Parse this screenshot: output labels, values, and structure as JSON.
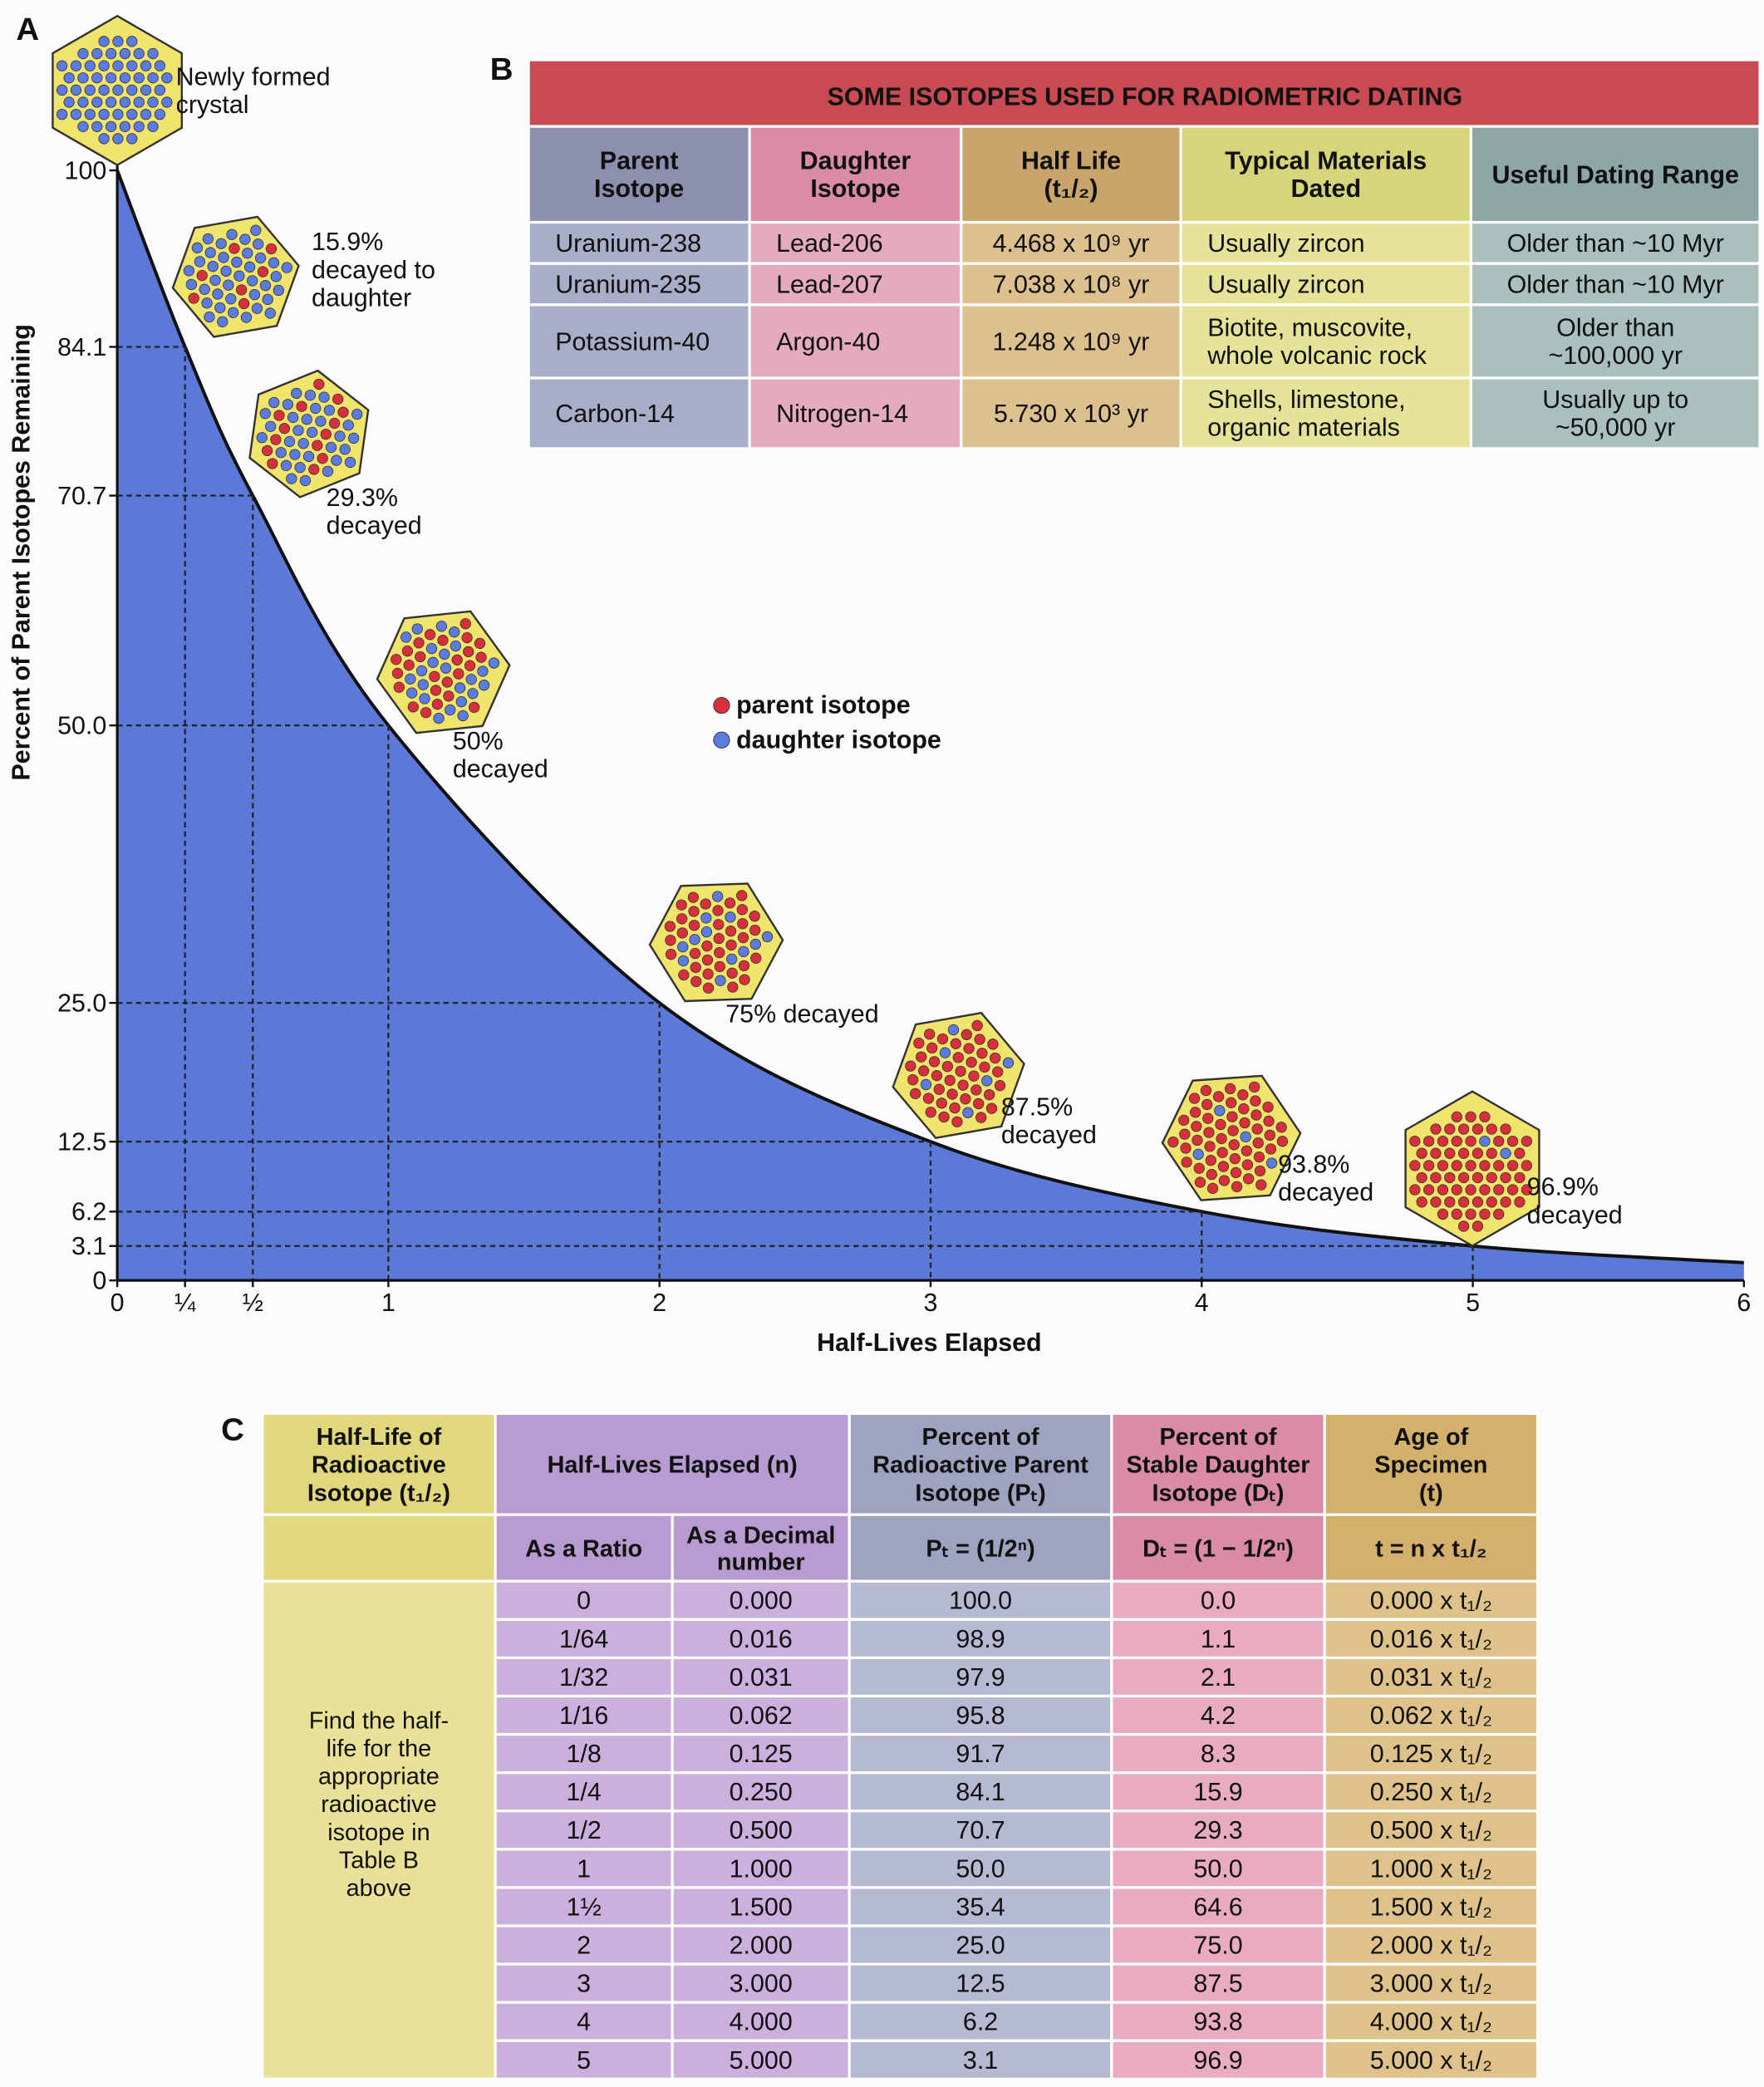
{
  "chart_data": {
    "type": "line",
    "panel": "A",
    "xlabel": "Half-Lives Elapsed",
    "ylabel": "Percent of Parent Isotopes Remaining",
    "x": [
      0,
      0.25,
      0.5,
      1,
      2,
      3,
      4,
      5,
      6
    ],
    "values": [
      100,
      84.1,
      70.7,
      50,
      25,
      12.5,
      6.2,
      3.1,
      1.6
    ],
    "color": "#111111",
    "fill": "#5d79d8",
    "xlim": [
      0,
      6
    ],
    "xticks": [
      0,
      {
        "value": 0.25,
        "label": "¼"
      },
      {
        "value": 0.5,
        "label": "½"
      },
      1,
      2,
      3,
      4,
      5,
      6
    ],
    "ylim": [
      0,
      100
    ],
    "yticks": [
      0,
      3.1,
      6.2,
      12.5,
      {
        "value": 25,
        "label": "25.0"
      },
      {
        "value": 50,
        "label": "50.0"
      },
      70.7,
      84.1,
      100
    ],
    "annotations": [
      {
        "lines": [
          "Newly formed",
          "crystal"
        ]
      },
      {
        "lines": [
          "15.9%",
          "decayed to",
          "daughter"
        ]
      },
      {
        "lines": [
          "29.3%",
          "decayed"
        ]
      },
      {
        "lines": [
          "50%",
          "decayed"
        ]
      },
      {
        "lines": [
          "75% decayed"
        ]
      },
      {
        "lines": [
          "87.5%",
          "decayed"
        ]
      },
      {
        "lines": [
          "93.8%",
          "decayed"
        ]
      },
      {
        "lines": [
          "96.9%",
          "decayed"
        ]
      }
    ],
    "legend": [
      {
        "name": "parent isotope",
        "color": "#d7303c"
      },
      {
        "name": "daughter isotope",
        "color": "#5b7be0"
      }
    ]
  },
  "table_b": {
    "panel": "B",
    "title": "SOME ISOTOPES USED FOR RADIOMETRIC DATING",
    "columns": [
      [
        "Parent",
        "Isotope"
      ],
      [
        "Daughter",
        "Isotope"
      ],
      [
        "Half Life",
        "(t₁/₂)"
      ],
      [
        "Typical Materials",
        "Dated"
      ],
      [
        "Useful Dating Range"
      ]
    ],
    "rows": [
      [
        [
          "Uranium-238"
        ],
        [
          "Lead-206"
        ],
        [
          "4.468 x 10⁹ yr"
        ],
        [
          "Usually zircon"
        ],
        [
          "Older than ~10 Myr"
        ]
      ],
      [
        [
          "Uranium-235"
        ],
        [
          "Lead-207"
        ],
        [
          "7.038 x 10⁸ yr"
        ],
        [
          "Usually zircon"
        ],
        [
          "Older than ~10 Myr"
        ]
      ],
      [
        [
          "Potassium-40"
        ],
        [
          "Argon-40"
        ],
        [
          "1.248 x 10⁹ yr"
        ],
        [
          "Biotite, muscovite,",
          "whole volcanic rock"
        ],
        [
          "Older than",
          "~100,000 yr"
        ]
      ],
      [
        [
          "Carbon-14"
        ],
        [
          "Nitrogen-14"
        ],
        [
          "5.730 x 10³ yr"
        ],
        [
          "Shells, limestone,",
          "organic materials"
        ],
        [
          "Usually up to",
          "~50,000 yr"
        ]
      ]
    ]
  },
  "table_c": {
    "panel": "C",
    "headers": [
      [
        "Half-Life of",
        "Radioactive",
        "Isotope (t₁/₂)"
      ],
      [
        "Half-Lives Elapsed (n)"
      ],
      [
        "Percent of",
        "Radioactive Parent",
        "Isotope (Pₜ)"
      ],
      [
        "Percent of",
        "Stable Daughter",
        "Isotope (Dₜ)"
      ],
      [
        "Age of",
        "Specimen",
        "(t)"
      ]
    ],
    "subheaders": [
      [
        "As a Ratio"
      ],
      [
        "As a Decimal",
        "number"
      ],
      [
        "Pₜ = (1/2ⁿ)"
      ],
      [
        "Dₜ = (1 − 1/2ⁿ)"
      ],
      [
        "t = n x t₁/₂"
      ]
    ],
    "note": [
      "Find the half-",
      "life for the",
      "appropriate",
      "radioactive",
      "isotope in",
      "Table B",
      "above"
    ],
    "rows": [
      [
        "0",
        "0.000",
        "100.0",
        "0.0",
        "0.000 x t₁/₂"
      ],
      [
        "1/64",
        "0.016",
        "98.9",
        "1.1",
        "0.016 x t₁/₂"
      ],
      [
        "1/32",
        "0.031",
        "97.9",
        "2.1",
        "0.031 x t₁/₂"
      ],
      [
        "1/16",
        "0.062",
        "95.8",
        "4.2",
        "0.062 x t₁/₂"
      ],
      [
        "1/8",
        "0.125",
        "91.7",
        "8.3",
        "0.125 x t₁/₂"
      ],
      [
        "1/4",
        "0.250",
        "84.1",
        "15.9",
        "0.250 x t₁/₂"
      ],
      [
        "1/2",
        "0.500",
        "70.7",
        "29.3",
        "0.500 x t₁/₂"
      ],
      [
        "1",
        "1.000",
        "50.0",
        "50.0",
        "1.000 x t₁/₂"
      ],
      [
        "1½",
        "1.500",
        "35.4",
        "64.6",
        "1.500 x t₁/₂"
      ],
      [
        "2",
        "2.000",
        "25.0",
        "75.0",
        "2.000 x t₁/₂"
      ],
      [
        "3",
        "3.000",
        "12.5",
        "87.5",
        "3.000 x t₁/₂"
      ],
      [
        "4",
        "4.000",
        "6.2",
        "93.8",
        "4.000 x t₁/₂"
      ],
      [
        "5",
        "5.000",
        "3.1",
        "96.9",
        "5.000 x t₁/₂"
      ]
    ]
  }
}
